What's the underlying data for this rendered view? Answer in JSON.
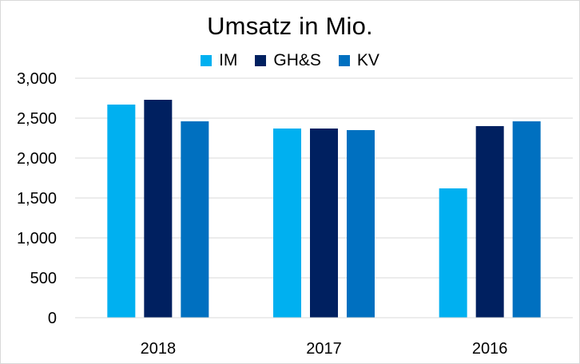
{
  "chart_data": {
    "type": "bar",
    "title": "Umsatz in Mio.",
    "categories": [
      "2018",
      "2017",
      "2016"
    ],
    "series": [
      {
        "name": "IM",
        "color": "#00b0f0",
        "values": [
          2670,
          2370,
          1620
        ]
      },
      {
        "name": "GH&S",
        "color": "#002060",
        "values": [
          2730,
          2370,
          2400
        ]
      },
      {
        "name": "KV",
        "color": "#0070c0",
        "values": [
          2460,
          2350,
          2460
        ]
      }
    ],
    "ylim": [
      0,
      3000
    ],
    "yticks": [
      "0",
      "500",
      "1,000",
      "1,500",
      "2,000",
      "2,500",
      "3,000"
    ],
    "ytick_values": [
      0,
      500,
      1000,
      1500,
      2000,
      2500,
      3000
    ],
    "grid": true,
    "legend_position": "top"
  }
}
